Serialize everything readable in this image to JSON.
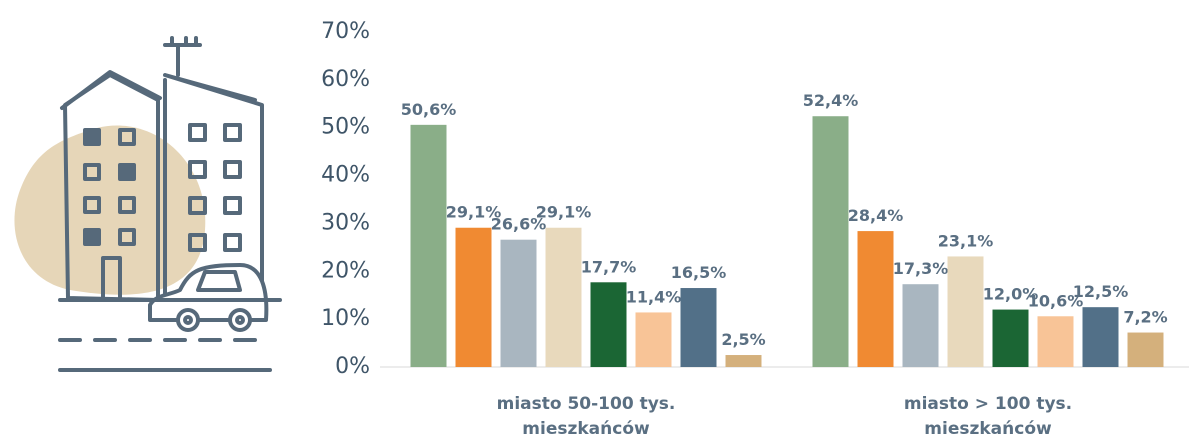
{
  "chart_data": {
    "type": "bar",
    "categories": [
      "miasto 50-100 tys. mieszkańców",
      "miasto > 100 tys. mieszkańców"
    ],
    "series": [
      {
        "color": "#8aae88",
        "values": [
          50.6,
          52.4
        ],
        "value_labels": [
          "50,6%",
          "52,4%"
        ]
      },
      {
        "color": "#f08a32",
        "values": [
          29.1,
          28.4
        ],
        "value_labels": [
          "29,1%",
          "28,4%"
        ]
      },
      {
        "color": "#a9b6c0",
        "values": [
          26.6,
          17.3
        ],
        "value_labels": [
          "26,6%",
          "17,3%"
        ]
      },
      {
        "color": "#e8d9bc",
        "values": [
          29.1,
          23.1
        ],
        "value_labels": [
          "29,1%",
          "23,1%"
        ]
      },
      {
        "color": "#1b6634",
        "values": [
          17.7,
          12.0
        ],
        "value_labels": [
          "17,7%",
          "12,0%"
        ]
      },
      {
        "color": "#f8c497",
        "values": [
          11.4,
          10.6
        ],
        "value_labels": [
          "11,4%",
          "10,6%"
        ]
      },
      {
        "color": "#527088",
        "values": [
          16.5,
          12.5
        ],
        "value_labels": [
          "16,5%",
          "12,5%"
        ]
      },
      {
        "color": "#d4b07c",
        "values": [
          2.5,
          7.2
        ],
        "value_labels": [
          "2,5%",
          "7,2%"
        ]
      }
    ],
    "ylim": [
      0,
      70
    ],
    "yticks": [
      {
        "value": 0,
        "label": "0%"
      },
      {
        "value": 10,
        "label": "10%"
      },
      {
        "value": 20,
        "label": "20%"
      },
      {
        "value": 30,
        "label": "30%"
      },
      {
        "value": 40,
        "label": "40%"
      },
      {
        "value": 50,
        "label": "50%"
      },
      {
        "value": 60,
        "label": "60%"
      },
      {
        "value": 70,
        "label": "70%"
      }
    ],
    "grid": false
  }
}
